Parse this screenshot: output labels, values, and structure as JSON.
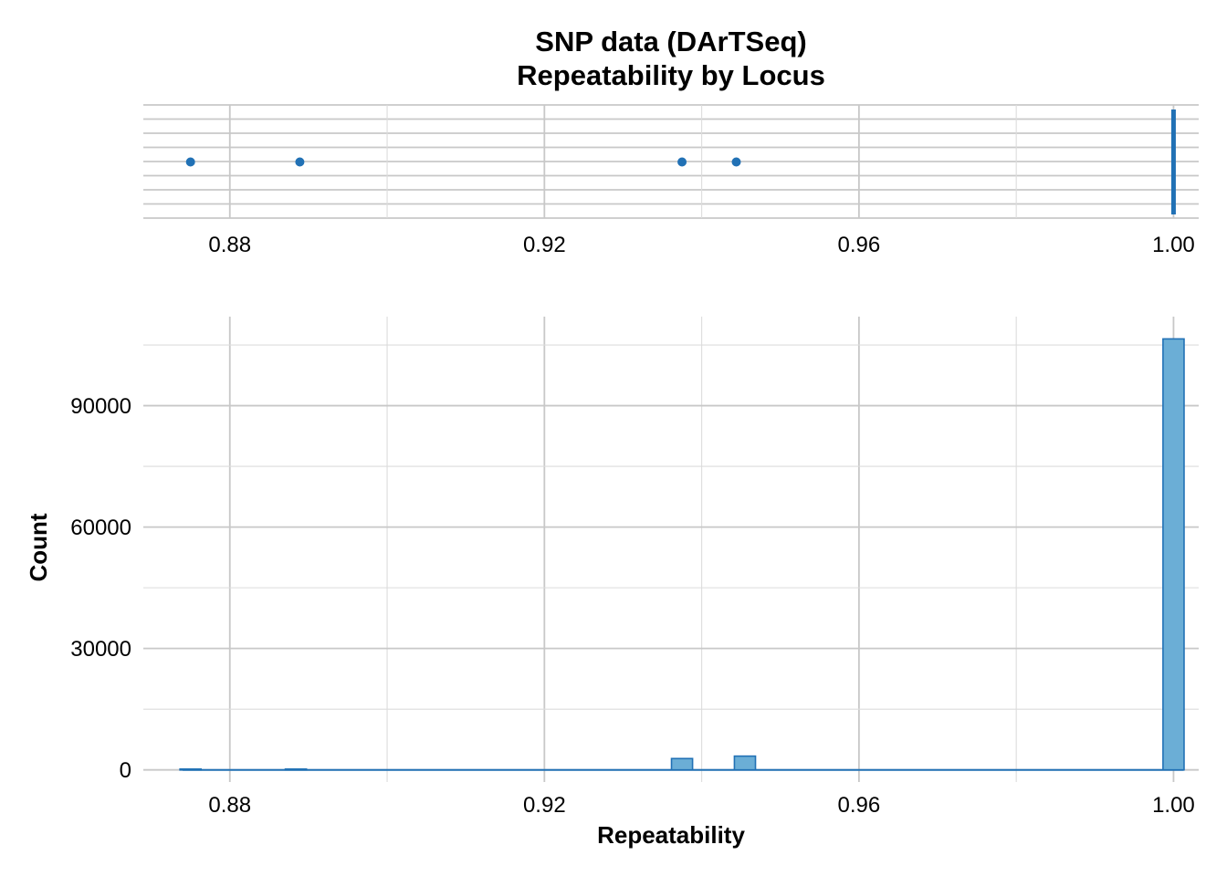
{
  "colors": {
    "accent": "#2171b5",
    "bar_fill": "#6baed6",
    "grid": "#c8c8c8"
  },
  "chart_data": [
    {
      "type": "scatter",
      "title": "SNP data (DArTSeq)",
      "subtitle": "Repeatability by Locus",
      "xlabel": "",
      "ylabel": "",
      "xlim": [
        0.869,
        1.0032
      ],
      "xticks": [
        "0.88",
        "0.92",
        "0.96",
        "1.00"
      ],
      "xtick_values": [
        0.88,
        0.92,
        0.96,
        1.0
      ],
      "grid": true,
      "points_x": [
        0.875,
        0.8889,
        0.9375,
        0.9444
      ],
      "dense_line_x": 1.0
    },
    {
      "type": "bar",
      "xlabel": "Repeatability",
      "ylabel": "Count",
      "xlim": [
        0.869,
        1.0032
      ],
      "ylim": [
        -3000,
        112000
      ],
      "xticks": [
        "0.88",
        "0.92",
        "0.96",
        "1.00"
      ],
      "xtick_values": [
        0.88,
        0.92,
        0.96,
        1.0
      ],
      "yticks": [
        "0",
        "30000",
        "60000",
        "90000"
      ],
      "ytick_values": [
        0,
        30000,
        60000,
        90000
      ],
      "grid": true,
      "bin_width": 0.00268,
      "bars": [
        {
          "x": 0.875,
          "value": 200
        },
        {
          "x": 0.8884,
          "value": 200
        },
        {
          "x": 0.9375,
          "value": 2800
        },
        {
          "x": 0.9455,
          "value": 3400
        },
        {
          "x": 1.0,
          "value": 106500
        }
      ]
    }
  ]
}
